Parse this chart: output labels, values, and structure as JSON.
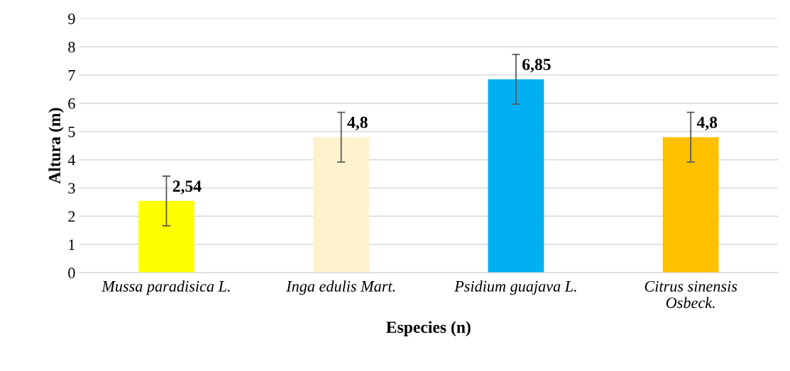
{
  "chart_data": {
    "type": "bar",
    "xlabel": "Especies (n)",
    "ylabel": "Altura (m)",
    "categories": [
      "Mussa paradisica L.",
      "Inga edulis Mart.",
      "Psidium guajava L.",
      "Citrus sinensis\nOsbeck."
    ],
    "values": [
      2.54,
      4.8,
      6.85,
      4.8
    ],
    "colors": [
      "#ffff00",
      "#fff2cc",
      "#00b0f0",
      "#ffc000"
    ],
    "errors": [
      0.88,
      0.88,
      0.88,
      0.88
    ],
    "value_labels": [
      "2,54",
      "4,8",
      "6,85",
      "4,8"
    ],
    "ylim": [
      0,
      9
    ],
    "yticks": [
      0,
      1,
      2,
      3,
      4,
      5,
      6,
      7,
      8,
      9
    ],
    "grid": "y"
  }
}
